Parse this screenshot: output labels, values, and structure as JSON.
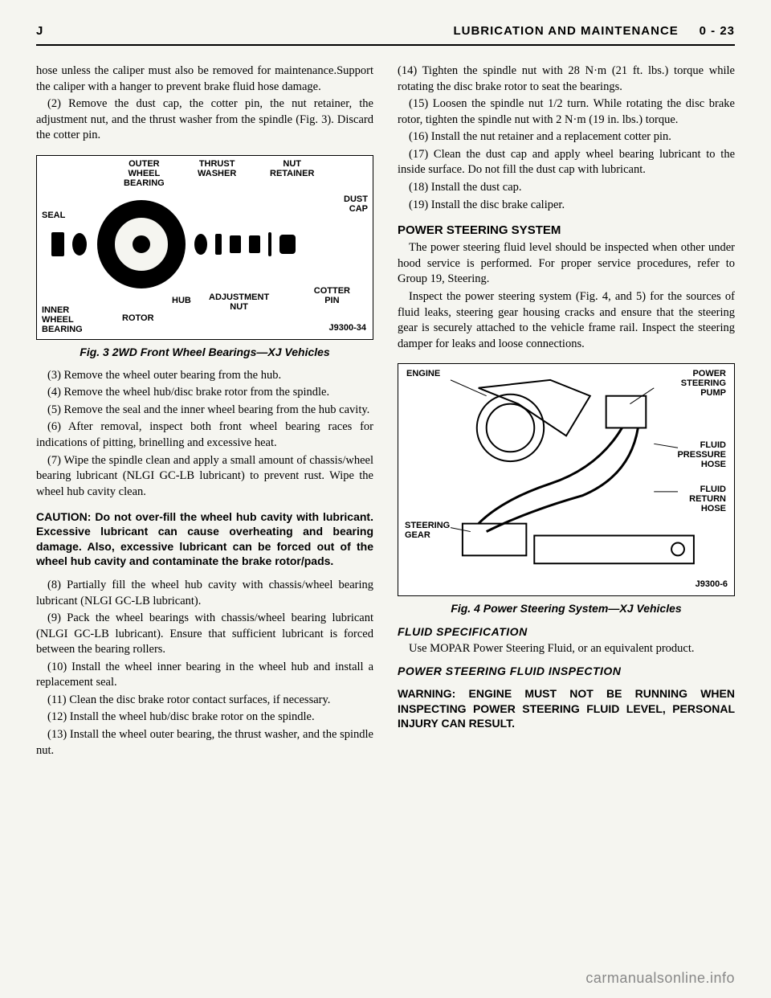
{
  "header": {
    "left": "J",
    "right_section": "LUBRICATION AND MAINTENANCE",
    "right_page": "0 - 23"
  },
  "col1": {
    "intro": "hose unless the caliper must also be removed for maintenance.Support the caliper with a hanger to prevent brake fluid hose damage.",
    "p2": "(2) Remove the dust cap, the cotter pin, the nut retainer, the adjustment nut, and the thrust washer from the spindle (Fig. 3). Discard the cotter pin.",
    "fig1": {
      "labels": {
        "outer_wheel_bearing": "OUTER\nWHEEL\nBEARING",
        "thrust_washer": "THRUST\nWASHER",
        "nut_retainer": "NUT\nRETAINER",
        "seal": "SEAL",
        "dust_cap": "DUST\nCAP",
        "hub": "HUB",
        "adjustment_nut": "ADJUSTMENT\nNUT",
        "cotter_pin": "COTTER\nPIN",
        "inner_wheel_bearing": "INNER\nWHEEL\nBEARING",
        "rotor": "ROTOR"
      },
      "ref": "J9300-34",
      "caption": "Fig. 3 2WD Front Wheel Bearings—XJ Vehicles"
    },
    "p3": "(3) Remove the wheel outer bearing from the hub.",
    "p4": "(4) Remove the wheel hub/disc brake rotor from the spindle.",
    "p5": "(5) Remove the seal and the inner wheel bearing from the hub cavity.",
    "p6": "(6) After removal, inspect both front wheel bearing races for indications of pitting, brinelling and excessive heat.",
    "p7": "(7) Wipe the spindle clean and apply a small amount of chassis/wheel bearing lubricant (NLGI GC-LB lubricant) to prevent rust. Wipe the wheel hub cavity clean.",
    "caution": "CAUTION: Do not over-fill the wheel hub cavity with lubricant. Excessive lubricant can cause overheating and bearing damage. Also, excessive lubricant can be forced out of the wheel hub cavity and contaminate the brake rotor/pads.",
    "p8": "(8) Partially fill the wheel hub cavity with chassis/wheel bearing lubricant (NLGI GC-LB lubricant).",
    "p9": "(9) Pack the wheel bearings with chassis/wheel bearing lubricant (NLGI GC-LB lubricant). Ensure that sufficient lubricant is forced between the bearing rollers.",
    "p10": "(10) Install the wheel inner bearing in the wheel hub and install a replacement seal.",
    "p11": "(11) Clean the disc brake rotor contact surfaces, if necessary.",
    "p12": "(12) Install the wheel hub/disc brake rotor on the spindle.",
    "p13": "(13) Install the wheel outer bearing, the thrust washer, and the spindle nut."
  },
  "col2": {
    "p14": "(14) Tighten the spindle nut with 28 N·m (21 ft. lbs.) torque while rotating the disc brake rotor to seat the bearings.",
    "p15": "(15) Loosen the spindle nut 1/2 turn. While rotating the disc brake rotor, tighten the spindle nut with 2 N·m (19 in. lbs.) torque.",
    "p16": "(16) Install the nut retainer and a replacement cotter pin.",
    "p17": "(17) Clean the dust cap and apply wheel bearing lubricant to the inside surface. Do not fill the dust cap with lubricant.",
    "p18": "(18) Install the dust cap.",
    "p19": "(19) Install the disc brake caliper.",
    "heading1": "POWER STEERING SYSTEM",
    "ps1": "The power steering fluid level should be inspected when other under hood service is performed. For proper service procedures, refer to Group 19, Steering.",
    "ps2": "Inspect the power steering system (Fig. 4, and 5) for the sources of fluid leaks, steering gear housing cracks and ensure that the steering gear is securely attached to the vehicle frame rail. Inspect the steering damper for leaks and loose connections.",
    "fig2": {
      "labels": {
        "engine": "ENGINE",
        "power_steering_pump": "POWER\nSTEERING\nPUMP",
        "fluid_pressure_hose": "FLUID\nPRESSURE\nHOSE",
        "fluid_return_hose": "FLUID\nRETURN\nHOSE",
        "steering_gear": "STEERING\nGEAR"
      },
      "ref": "J9300-6",
      "caption": "Fig. 4 Power Steering System—XJ Vehicles"
    },
    "sub_heading1": "FLUID SPECIFICATION",
    "fs1": "Use MOPAR Power Steering Fluid, or an equivalent product.",
    "sub_heading2": "POWER STEERING FLUID INSPECTION",
    "warning": "WARNING: ENGINE MUST NOT BE RUNNING WHEN INSPECTING POWER STEERING FLUID LEVEL, PERSONAL INJURY CAN RESULT."
  },
  "watermark": "carmanualsonline.info",
  "colors": {
    "bg": "#f5f5f0",
    "text": "#000000",
    "watermark": "#888888"
  }
}
